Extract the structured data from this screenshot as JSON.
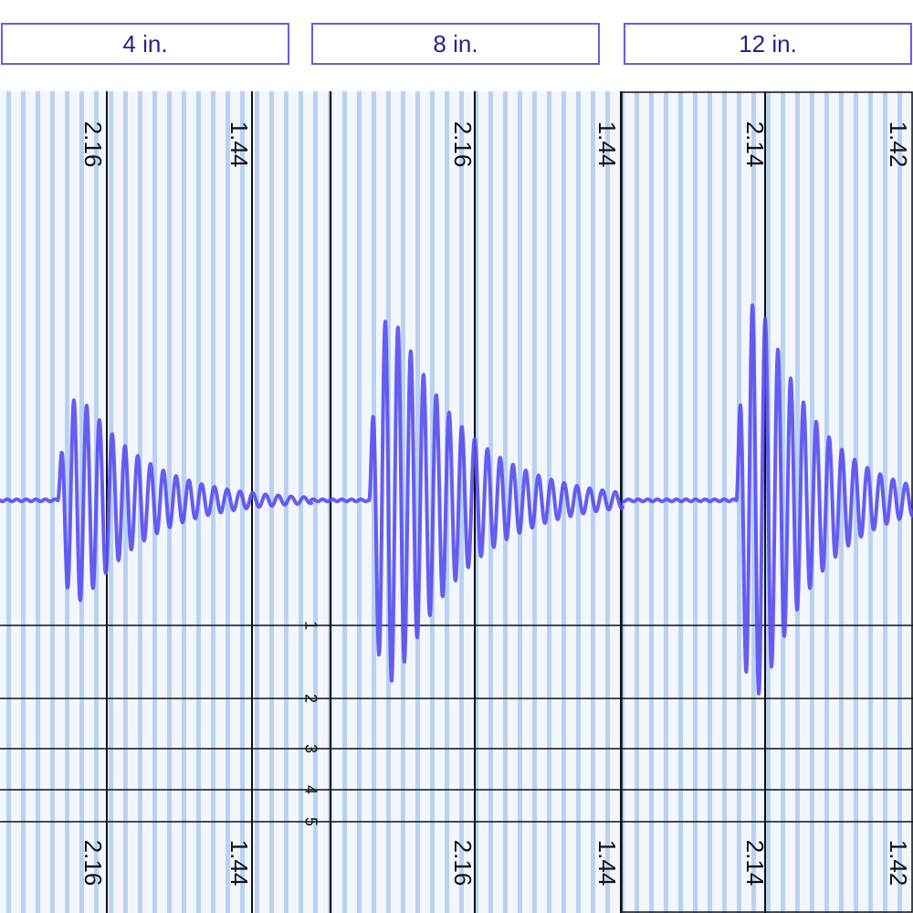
{
  "tabs": [
    {
      "label": "4 in."
    },
    {
      "label": "8 in."
    },
    {
      "label": "12 in."
    }
  ],
  "colors": {
    "trace": "#5a4ff0",
    "stripe": "#b9d2f3",
    "background": "#f3f7fd",
    "grid_line": "#111111",
    "tab_border": "#6b5ce0",
    "tab_text": "#2b1d8f"
  },
  "magnitude_scale": {
    "labels": [
      "1",
      "2",
      "3",
      "4",
      "5"
    ]
  },
  "chart_data": {
    "type": "line",
    "title": "",
    "xlabel": "",
    "ylabel": "",
    "grid": true,
    "panels": [
      {
        "name": "4 in.",
        "tick_labels": [
          "2.16",
          "1.44"
        ],
        "trace": {
          "onset": 0.2,
          "peak_amplitude": 3.1,
          "cycles": 14,
          "decay": 0.2
        }
      },
      {
        "name": "8 in.",
        "tick_labels": [
          "2.16",
          "1.44"
        ],
        "trace": {
          "onset": 0.2,
          "peak_amplitude": 5.4,
          "cycles": 16,
          "decay": 0.18
        }
      },
      {
        "name": "12 in.",
        "tick_labels": [
          "2.14",
          "1.42"
        ],
        "trace": {
          "onset": 0.39,
          "peak_amplitude": 6.2,
          "cycles": 13,
          "decay": 0.22
        }
      }
    ]
  }
}
